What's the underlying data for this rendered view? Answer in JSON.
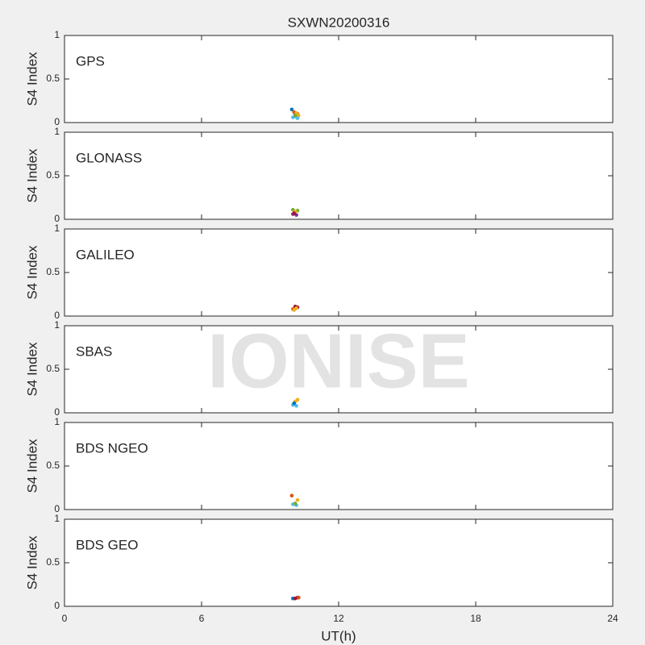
{
  "watermark": "IONISE",
  "chart_data": [
    {
      "type": "scatter",
      "title": "SXWN20200316",
      "label": "GPS",
      "ylabel": "S4 Index",
      "xlim": [
        0,
        24
      ],
      "xticks": [
        0,
        6,
        12,
        18,
        24
      ],
      "ylim": [
        0,
        1
      ],
      "yticks": [
        0,
        0.5,
        1
      ],
      "series": [
        {
          "color": "#0072BD",
          "x": [
            9.95,
            10.1
          ],
          "values": [
            0.15,
            0.09
          ]
        },
        {
          "color": "#D95319",
          "x": [
            10.05,
            10.2
          ],
          "values": [
            0.12,
            0.1
          ]
        },
        {
          "color": "#EDB120",
          "x": [
            10.15,
            10.25
          ],
          "values": [
            0.11,
            0.08
          ]
        },
        {
          "color": "#4DBEEE",
          "x": [
            10.0,
            10.1,
            10.2
          ],
          "values": [
            0.06,
            0.07,
            0.05
          ]
        },
        {
          "color": "#77AC30",
          "x": [
            10.1
          ],
          "values": [
            0.08
          ]
        }
      ]
    },
    {
      "type": "scatter",
      "label": "GLONASS",
      "ylabel": "S4 Index",
      "xlim": [
        0,
        24
      ],
      "xticks": [
        0,
        6,
        12,
        18,
        24
      ],
      "ylim": [
        0,
        1
      ],
      "yticks": [
        0,
        0.5,
        1
      ],
      "series": [
        {
          "color": "#7E2F8E",
          "x": [
            10.0,
            10.15
          ],
          "values": [
            0.06,
            0.05
          ]
        },
        {
          "color": "#77AC30",
          "x": [
            10.0,
            10.2
          ],
          "values": [
            0.11,
            0.1
          ]
        },
        {
          "color": "#EDB120",
          "x": [
            10.1
          ],
          "values": [
            0.09
          ]
        },
        {
          "color": "#A2142F",
          "x": [
            10.05
          ],
          "values": [
            0.07
          ]
        }
      ]
    },
    {
      "type": "scatter",
      "label": "GALILEO",
      "ylabel": "S4 Index",
      "xlim": [
        0,
        24
      ],
      "xticks": [
        0,
        6,
        12,
        18,
        24
      ],
      "ylim": [
        0,
        1
      ],
      "yticks": [
        0,
        0.5,
        1
      ],
      "series": [
        {
          "color": "#A2142F",
          "x": [
            10.1,
            10.2
          ],
          "values": [
            0.11,
            0.1
          ]
        },
        {
          "color": "#D95319",
          "x": [
            10.0
          ],
          "values": [
            0.08
          ]
        },
        {
          "color": "#EDB120",
          "x": [
            10.05,
            10.15
          ],
          "values": [
            0.07,
            0.09
          ]
        }
      ]
    },
    {
      "type": "scatter",
      "label": "SBAS",
      "ylabel": "S4 Index",
      "xlim": [
        0,
        24
      ],
      "xticks": [
        0,
        6,
        12,
        18,
        24
      ],
      "ylim": [
        0,
        1
      ],
      "yticks": [
        0,
        0.5,
        1
      ],
      "series": [
        {
          "color": "#EDB120",
          "x": [
            10.2,
            10.1
          ],
          "values": [
            0.15,
            0.13
          ]
        },
        {
          "color": "#4DBEEE",
          "x": [
            10.0,
            10.15
          ],
          "values": [
            0.09,
            0.08
          ]
        },
        {
          "color": "#0072BD",
          "x": [
            10.05
          ],
          "values": [
            0.11
          ]
        }
      ]
    },
    {
      "type": "scatter",
      "label": "BDS NGEO",
      "ylabel": "S4 Index",
      "xlim": [
        0,
        24
      ],
      "xticks": [
        0,
        6,
        12,
        18,
        24
      ],
      "ylim": [
        0,
        1
      ],
      "yticks": [
        0,
        0.5,
        1
      ],
      "series": [
        {
          "color": "#D95319",
          "x": [
            9.95
          ],
          "values": [
            0.16
          ]
        },
        {
          "color": "#EDB120",
          "x": [
            10.2
          ],
          "values": [
            0.11
          ]
        },
        {
          "color": "#4DBEEE",
          "x": [
            10.0,
            10.15
          ],
          "values": [
            0.06,
            0.05
          ]
        },
        {
          "color": "#77AC30",
          "x": [
            10.1
          ],
          "values": [
            0.07
          ]
        }
      ]
    },
    {
      "type": "scatter",
      "label": "BDS GEO",
      "ylabel": "S4 Index",
      "xlabel": "UT(h)",
      "xlim": [
        0,
        24
      ],
      "xticks": [
        0,
        6,
        12,
        18,
        24
      ],
      "ylim": [
        0,
        1
      ],
      "yticks": [
        0,
        0.5,
        1
      ],
      "series": [
        {
          "color": "#0072BD",
          "x": [
            10.0
          ],
          "values": [
            0.09
          ]
        },
        {
          "color": "#A2142F",
          "x": [
            10.1,
            10.2
          ],
          "values": [
            0.09,
            0.1
          ]
        },
        {
          "color": "#D95319",
          "x": [
            10.25
          ],
          "values": [
            0.1
          ]
        }
      ]
    }
  ]
}
